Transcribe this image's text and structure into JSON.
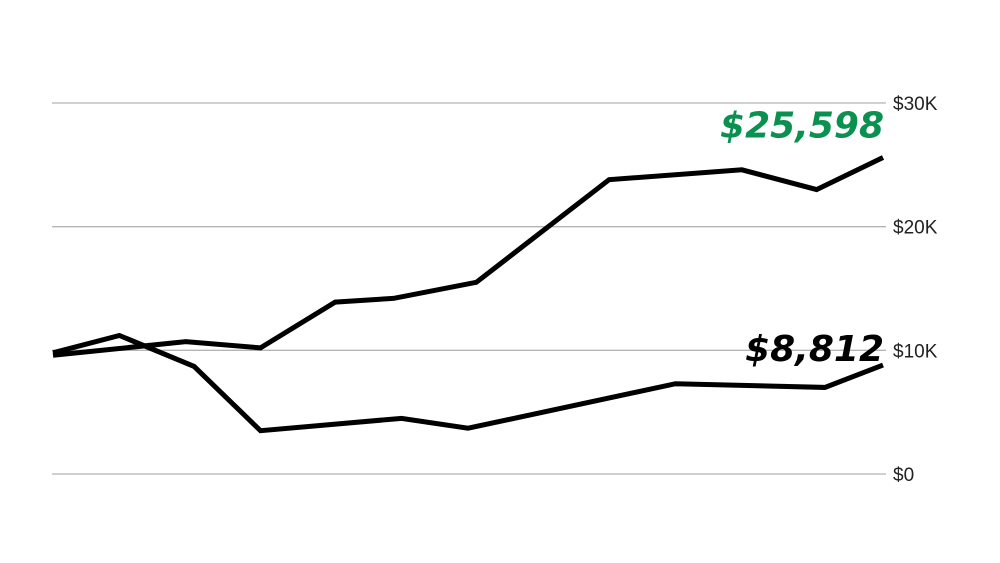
{
  "chart_data": {
    "type": "line",
    "title": "",
    "xlabel": "",
    "ylabel": "",
    "ylim": [
      0,
      30000
    ],
    "xlim": [
      0,
      10
    ],
    "grid": true,
    "y_ticks": [
      {
        "value": 0,
        "label": "$0"
      },
      {
        "value": 10000,
        "label": "$10K"
      },
      {
        "value": 20000,
        "label": "$20K"
      },
      {
        "value": 30000,
        "label": "$30K"
      }
    ],
    "series": [
      {
        "color": "#000000",
        "end_label": "$25,598",
        "end_label_color": "#0a9150",
        "x": [
          0,
          1.6,
          2.5,
          3.4,
          4.1,
          5.1,
          6.7,
          8.3,
          9.2,
          10
        ],
        "y": [
          9600,
          10700,
          10200,
          13900,
          14200,
          15500,
          23800,
          24600,
          23000,
          25598
        ]
      },
      {
        "color": "#000000",
        "end_label": "$8,812",
        "end_label_color": "#000000",
        "x": [
          0,
          0.8,
          1.7,
          2.5,
          4.2,
          5.0,
          7.5,
          9.3,
          10
        ],
        "y": [
          9800,
          11200,
          8700,
          3500,
          4500,
          3700,
          7300,
          7000,
          8812
        ]
      }
    ]
  }
}
